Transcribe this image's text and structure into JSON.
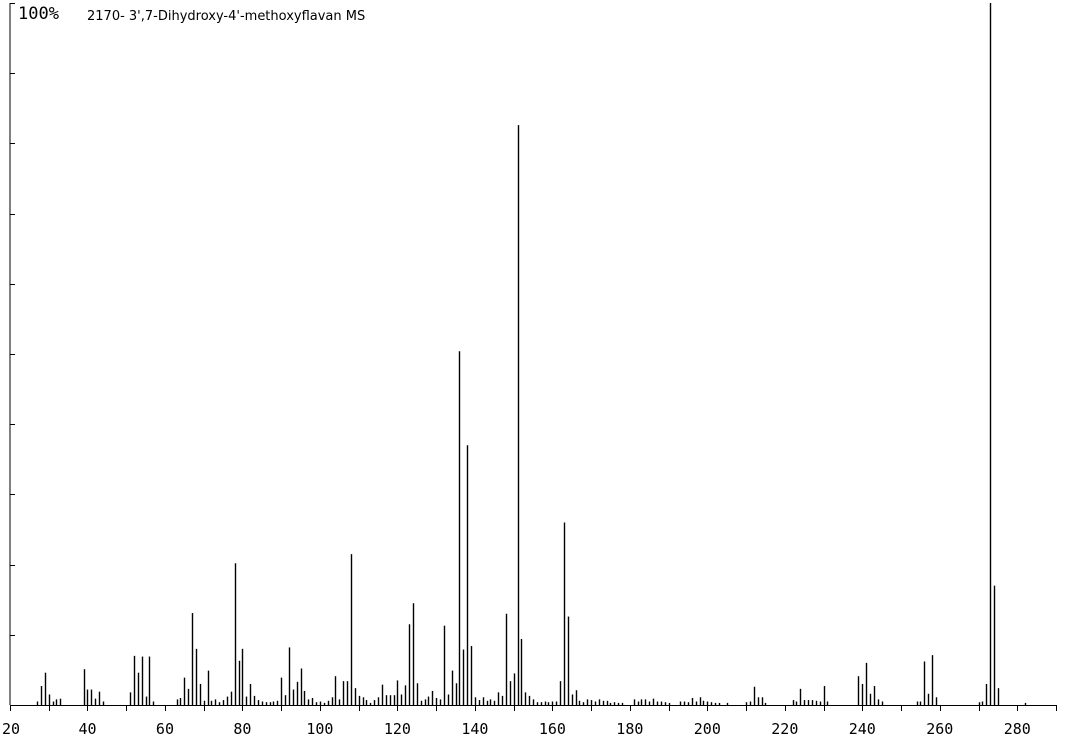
{
  "chart_data": {
    "type": "bar",
    "title": "2170- 3',7-Dihydroxy-4'-methoxyflavan MS",
    "y_max_label": "100%",
    "xlim": [
      20,
      290
    ],
    "ylim": [
      0,
      100
    ],
    "x_ticks": [
      20,
      40,
      60,
      80,
      100,
      120,
      140,
      160,
      180,
      200,
      220,
      240,
      260,
      280
    ],
    "x_tick_labels": [
      "20",
      "40",
      "60",
      "80",
      "100",
      "120",
      "140",
      "160",
      "180",
      "200",
      "220",
      "240",
      "260",
      "280"
    ],
    "y_ticks": [
      0,
      10,
      20,
      30,
      40,
      50,
      60,
      70,
      80,
      90,
      100
    ],
    "grid": false,
    "peaks": [
      [
        27,
        0.5
      ],
      [
        28,
        2.7
      ],
      [
        29,
        4.6
      ],
      [
        30,
        1.5
      ],
      [
        31,
        0.5
      ],
      [
        32,
        0.8
      ],
      [
        33,
        0.9
      ],
      [
        39,
        5.1
      ],
      [
        40,
        2.2
      ],
      [
        41,
        2.2
      ],
      [
        42,
        0.9
      ],
      [
        43,
        1.9
      ],
      [
        44,
        0.5
      ],
      [
        51,
        1.8
      ],
      [
        52,
        7.0
      ],
      [
        53,
        4.6
      ],
      [
        54,
        6.9
      ],
      [
        55,
        1.2
      ],
      [
        56,
        6.9
      ],
      [
        57,
        0.5
      ],
      [
        63,
        0.8
      ],
      [
        64,
        1.0
      ],
      [
        65,
        3.9
      ],
      [
        66,
        2.3
      ],
      [
        67,
        13.1
      ],
      [
        68,
        8.0
      ],
      [
        69,
        3.0
      ],
      [
        70,
        0.6
      ],
      [
        71,
        4.9
      ],
      [
        72,
        0.6
      ],
      [
        73,
        0.8
      ],
      [
        74,
        0.4
      ],
      [
        75,
        0.7
      ],
      [
        76,
        1.2
      ],
      [
        77,
        1.9
      ],
      [
        78,
        20.2
      ],
      [
        79,
        6.3
      ],
      [
        80,
        8.0
      ],
      [
        81,
        1.2
      ],
      [
        82,
        3.0
      ],
      [
        83,
        1.3
      ],
      [
        84,
        0.7
      ],
      [
        85,
        0.5
      ],
      [
        86,
        0.4
      ],
      [
        87,
        0.4
      ],
      [
        88,
        0.5
      ],
      [
        89,
        0.6
      ],
      [
        90,
        3.9
      ],
      [
        91,
        1.4
      ],
      [
        92,
        8.2
      ],
      [
        93,
        2.2
      ],
      [
        94,
        3.3
      ],
      [
        95,
        5.2
      ],
      [
        96,
        2.0
      ],
      [
        97,
        0.8
      ],
      [
        98,
        1.0
      ],
      [
        99,
        0.4
      ],
      [
        100,
        0.5
      ],
      [
        101,
        0.3
      ],
      [
        102,
        0.6
      ],
      [
        103,
        1.1
      ],
      [
        104,
        4.1
      ],
      [
        105,
        0.8
      ],
      [
        106,
        3.4
      ],
      [
        107,
        3.4
      ],
      [
        108,
        21.5
      ],
      [
        109,
        2.4
      ],
      [
        110,
        1.3
      ],
      [
        111,
        1.1
      ],
      [
        112,
        0.7
      ],
      [
        113,
        0.3
      ],
      [
        114,
        0.7
      ],
      [
        115,
        1.1
      ],
      [
        116,
        2.9
      ],
      [
        117,
        1.4
      ],
      [
        118,
        1.4
      ],
      [
        119,
        1.4
      ],
      [
        120,
        3.5
      ],
      [
        121,
        1.5
      ],
      [
        122,
        2.8
      ],
      [
        123,
        11.5
      ],
      [
        124,
        14.5
      ],
      [
        125,
        3.1
      ],
      [
        126,
        0.6
      ],
      [
        127,
        0.8
      ],
      [
        128,
        1.2
      ],
      [
        129,
        2.0
      ],
      [
        130,
        1.0
      ],
      [
        131,
        0.8
      ],
      [
        132,
        11.3
      ],
      [
        133,
        1.5
      ],
      [
        134,
        4.9
      ],
      [
        135,
        3.1
      ],
      [
        136,
        50.4
      ],
      [
        137,
        7.9
      ],
      [
        138,
        37.0
      ],
      [
        139,
        8.4
      ],
      [
        140,
        1.1
      ],
      [
        141,
        0.7
      ],
      [
        142,
        1.1
      ],
      [
        143,
        0.6
      ],
      [
        144,
        0.8
      ],
      [
        145,
        0.6
      ],
      [
        146,
        1.8
      ],
      [
        147,
        1.3
      ],
      [
        148,
        13.0
      ],
      [
        149,
        3.4
      ],
      [
        150,
        4.5
      ],
      [
        151,
        82.6
      ],
      [
        152,
        9.4
      ],
      [
        153,
        1.8
      ],
      [
        154,
        1.3
      ],
      [
        155,
        0.8
      ],
      [
        156,
        0.4
      ],
      [
        157,
        0.4
      ],
      [
        158,
        0.5
      ],
      [
        159,
        0.4
      ],
      [
        160,
        0.5
      ],
      [
        161,
        0.5
      ],
      [
        162,
        3.4
      ],
      [
        163,
        26.0
      ],
      [
        164,
        12.6
      ],
      [
        165,
        1.5
      ],
      [
        166,
        2.1
      ],
      [
        167,
        0.6
      ],
      [
        168,
        0.4
      ],
      [
        169,
        0.8
      ],
      [
        170,
        0.7
      ],
      [
        171,
        0.5
      ],
      [
        172,
        0.8
      ],
      [
        173,
        0.6
      ],
      [
        174,
        0.6
      ],
      [
        175,
        0.3
      ],
      [
        176,
        0.4
      ],
      [
        177,
        0.3
      ],
      [
        178,
        0.3
      ],
      [
        181,
        0.8
      ],
      [
        182,
        0.5
      ],
      [
        183,
        0.8
      ],
      [
        184,
        0.8
      ],
      [
        185,
        0.5
      ],
      [
        186,
        0.9
      ],
      [
        187,
        0.5
      ],
      [
        188,
        0.5
      ],
      [
        189,
        0.4
      ],
      [
        190,
        0.3
      ],
      [
        193,
        0.5
      ],
      [
        194,
        0.5
      ],
      [
        195,
        0.4
      ],
      [
        196,
        1.0
      ],
      [
        197,
        0.5
      ],
      [
        198,
        1.1
      ],
      [
        199,
        0.6
      ],
      [
        200,
        0.5
      ],
      [
        201,
        0.4
      ],
      [
        202,
        0.3
      ],
      [
        203,
        0.3
      ],
      [
        205,
        0.3
      ],
      [
        210,
        0.4
      ],
      [
        211,
        0.5
      ],
      [
        212,
        2.6
      ],
      [
        213,
        1.1
      ],
      [
        214,
        1.1
      ],
      [
        215,
        0.3
      ],
      [
        222,
        0.7
      ],
      [
        223,
        0.5
      ],
      [
        224,
        2.3
      ],
      [
        225,
        0.7
      ],
      [
        226,
        0.7
      ],
      [
        227,
        0.7
      ],
      [
        228,
        0.6
      ],
      [
        229,
        0.5
      ],
      [
        230,
        2.7
      ],
      [
        231,
        0.5
      ],
      [
        239,
        4.1
      ],
      [
        240,
        3.0
      ],
      [
        241,
        6.0
      ],
      [
        242,
        1.6
      ],
      [
        243,
        2.7
      ],
      [
        244,
        0.8
      ],
      [
        245,
        0.5
      ],
      [
        254,
        0.5
      ],
      [
        255,
        0.5
      ],
      [
        256,
        6.2
      ],
      [
        257,
        1.6
      ],
      [
        258,
        7.1
      ],
      [
        259,
        1.1
      ],
      [
        270,
        0.4
      ],
      [
        271,
        0.5
      ],
      [
        272,
        3.0
      ],
      [
        273,
        100.0
      ],
      [
        274,
        17.0
      ],
      [
        275,
        2.4
      ],
      [
        282,
        0.3
      ]
    ]
  }
}
